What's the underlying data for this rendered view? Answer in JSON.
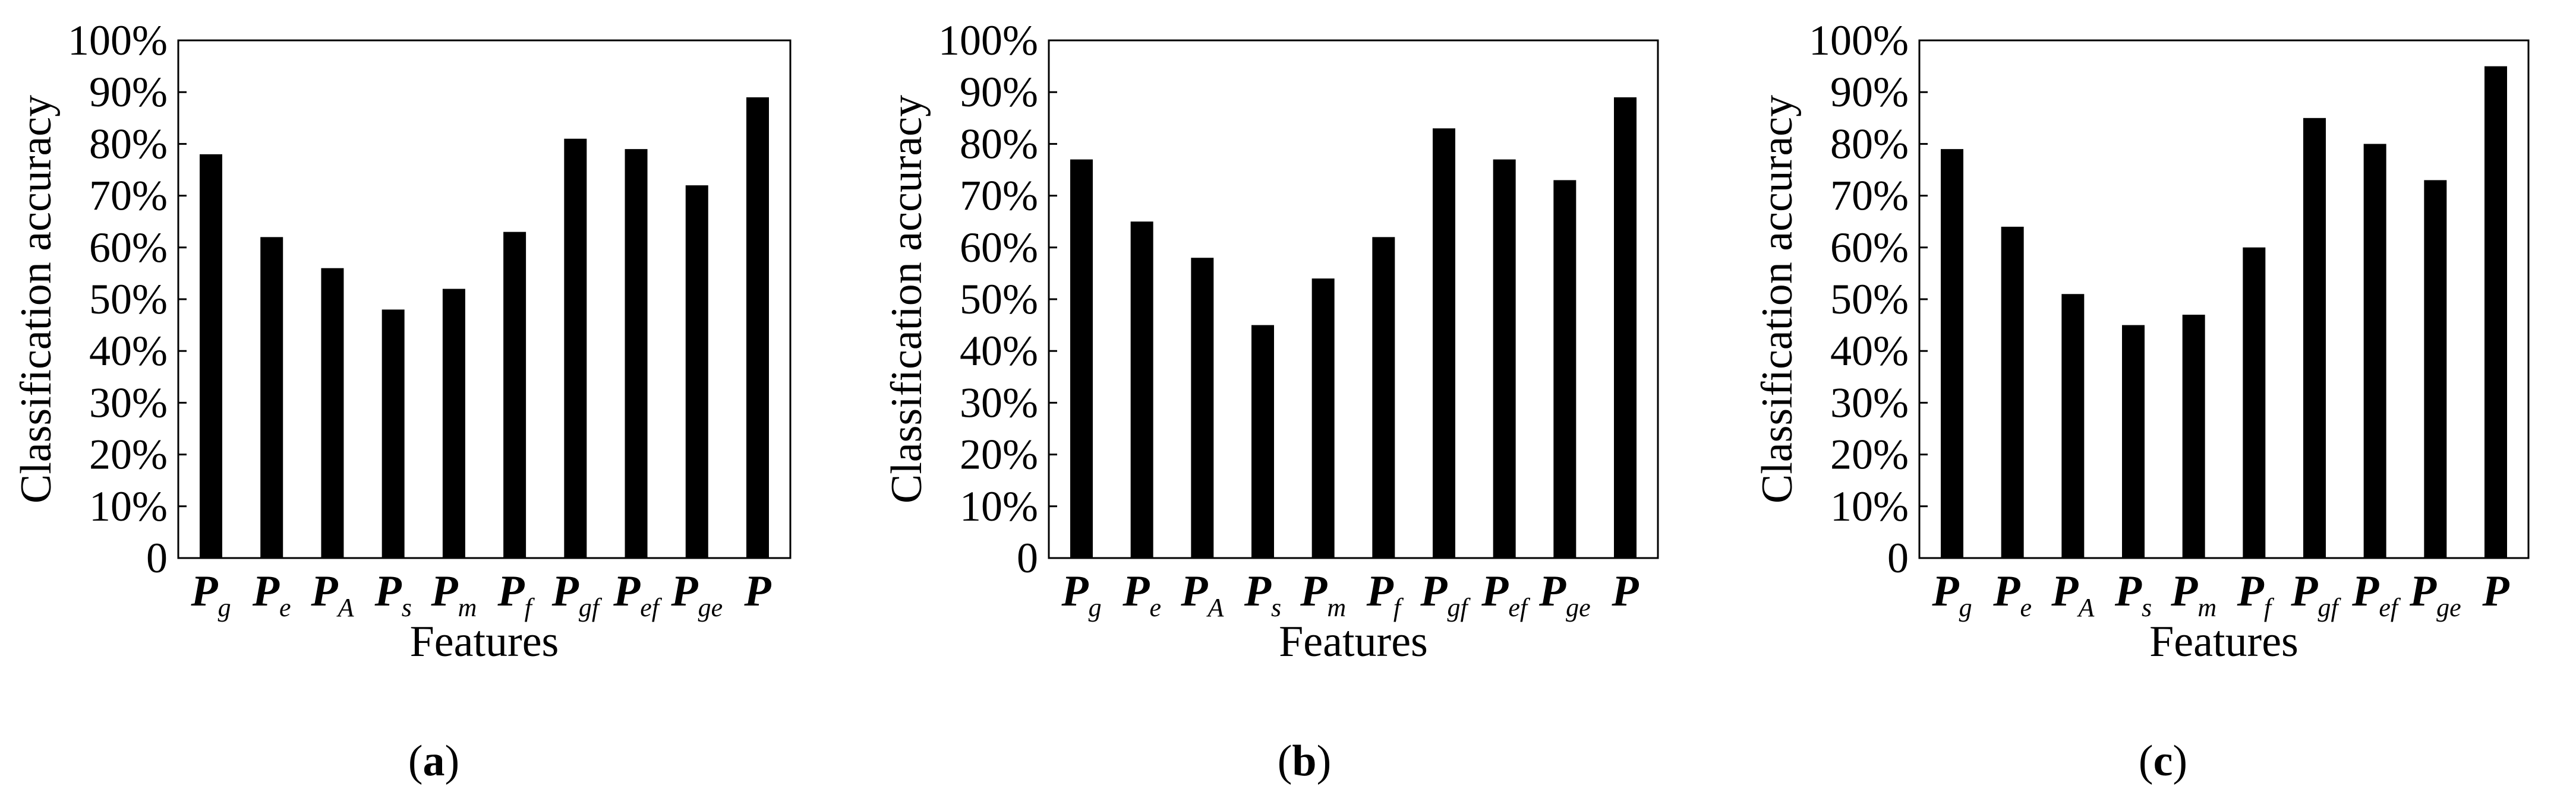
{
  "chart_data": [
    {
      "type": "bar",
      "panel": "a",
      "categories": [
        "Pg",
        "Pe",
        "PA",
        "Ps",
        "Pm",
        "Pf",
        "Pgf",
        "Pef",
        "Pge",
        "P"
      ],
      "values": [
        78,
        62,
        56,
        48,
        52,
        63,
        81,
        79,
        72,
        89
      ],
      "xlabel": "Features",
      "ylabel": "Classification accuracy",
      "ylim": [
        0,
        100
      ],
      "y_ticks": [
        "0",
        "10%",
        "20%",
        "30%",
        "40%",
        "50%",
        "60%",
        "70%",
        "80%",
        "90%",
        "100%"
      ],
      "grid": false,
      "bar_color": "#000000"
    },
    {
      "type": "bar",
      "panel": "b",
      "categories": [
        "Pg",
        "Pe",
        "PA",
        "Ps",
        "Pm",
        "Pf",
        "Pgf",
        "Pef",
        "Pge",
        "P"
      ],
      "values": [
        77,
        65,
        58,
        45,
        54,
        62,
        83,
        77,
        73,
        89
      ],
      "xlabel": "Features",
      "ylabel": "Classification accuracy",
      "ylim": [
        0,
        100
      ],
      "y_ticks": [
        "0",
        "10%",
        "20%",
        "30%",
        "40%",
        "50%",
        "60%",
        "70%",
        "80%",
        "90%",
        "100%"
      ],
      "grid": false,
      "bar_color": "#000000"
    },
    {
      "type": "bar",
      "panel": "c",
      "categories": [
        "Pg",
        "Pe",
        "PA",
        "Ps",
        "Pm",
        "Pf",
        "Pgf",
        "Pef",
        "Pge",
        "P"
      ],
      "values": [
        79,
        64,
        51,
        45,
        47,
        60,
        85,
        80,
        73,
        95
      ],
      "xlabel": "Features",
      "ylabel": "Classification accuracy",
      "ylim": [
        0,
        100
      ],
      "y_ticks": [
        "0",
        "10%",
        "20%",
        "30%",
        "40%",
        "50%",
        "60%",
        "70%",
        "80%",
        "90%",
        "100%"
      ],
      "grid": false,
      "bar_color": "#000000"
    }
  ],
  "feature_labels": [
    {
      "main": "P",
      "sub": "g"
    },
    {
      "main": "P",
      "sub": "e"
    },
    {
      "main": "P",
      "sub": "A"
    },
    {
      "main": "P",
      "sub": "s"
    },
    {
      "main": "P",
      "sub": "m"
    },
    {
      "main": "P",
      "sub": "f"
    },
    {
      "main": "P",
      "sub": "gf"
    },
    {
      "main": "P",
      "sub": "ef"
    },
    {
      "main": "P",
      "sub": "ge"
    },
    {
      "main": "P",
      "sub": ""
    }
  ],
  "captions": [
    {
      "open": "(",
      "letter": "a",
      "close": ")"
    },
    {
      "open": "(",
      "letter": "b",
      "close": ")"
    },
    {
      "open": "(",
      "letter": "c",
      "close": ")"
    }
  ]
}
